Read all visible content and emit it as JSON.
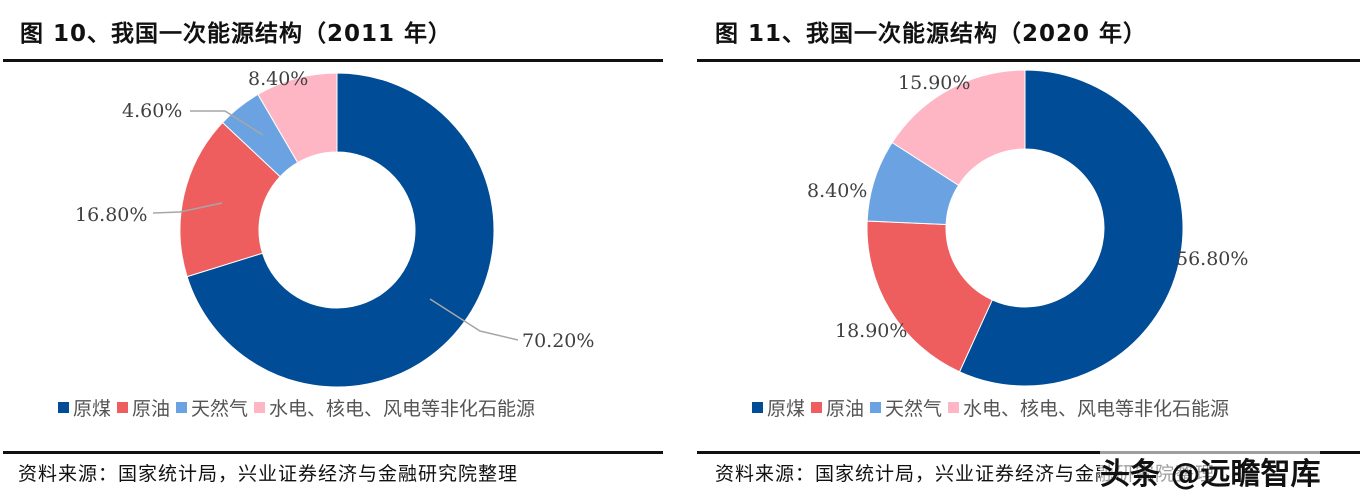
{
  "colors": {
    "coal": "#004C97",
    "oil": "#EE5E5E",
    "gas": "#6BA3E2",
    "renewables": "#FFB6C4",
    "leader_line": "#A6A6A6"
  },
  "left": {
    "title": "图 10、我国一次能源结构（2011 年）",
    "legend": [
      "原煤",
      "原油",
      "天然气",
      "水电、核电、风电等非化石能源"
    ],
    "source": "资料来源：国家统计局，兴业证券经济与金融研究院整理",
    "labels": {
      "coal": "70.20%",
      "oil": "16.80%",
      "gas": "4.60%",
      "renewables": "8.40%"
    }
  },
  "right": {
    "title": "图 11、我国一次能源结构（2020 年）",
    "legend": [
      "原煤",
      "原油",
      "天然气",
      "水电、核电、风电等非化石能源"
    ],
    "source": "资料来源：国家统计局，兴业证券经济与金融研究院整理",
    "labels": {
      "coal": "56.80%",
      "oil": "18.90%",
      "gas": "8.40%",
      "renewables": "15.90%"
    }
  },
  "watermark": "头条 @远瞻智库",
  "chart_data": [
    {
      "type": "pie",
      "subtype": "donut",
      "title": "图 10、我国一次能源结构（2011 年）",
      "categories": [
        "原煤",
        "原油",
        "天然气",
        "水电、核电、风电等非化石能源"
      ],
      "values": [
        70.2,
        16.8,
        4.6,
        8.4
      ],
      "unit": "%",
      "data_labels": [
        "70.20%",
        "16.80%",
        "4.60%",
        "8.40%"
      ],
      "colors": [
        "#004C97",
        "#EE5E5E",
        "#6BA3E2",
        "#FFB6C4"
      ],
      "legend_position": "bottom",
      "source": "资料来源：国家统计局，兴业证券经济与金融研究院整理"
    },
    {
      "type": "pie",
      "subtype": "donut",
      "title": "图 11、我国一次能源结构（2020 年）",
      "categories": [
        "原煤",
        "原油",
        "天然气",
        "水电、核电、风电等非化石能源"
      ],
      "values": [
        56.8,
        18.9,
        8.4,
        15.9
      ],
      "unit": "%",
      "data_labels": [
        "56.80%",
        "18.90%",
        "8.40%",
        "15.90%"
      ],
      "colors": [
        "#004C97",
        "#EE5E5E",
        "#6BA3E2",
        "#FFB6C4"
      ],
      "legend_position": "bottom",
      "source": "资料来源：国家统计局，兴业证券经济与金融研究院整理"
    }
  ]
}
